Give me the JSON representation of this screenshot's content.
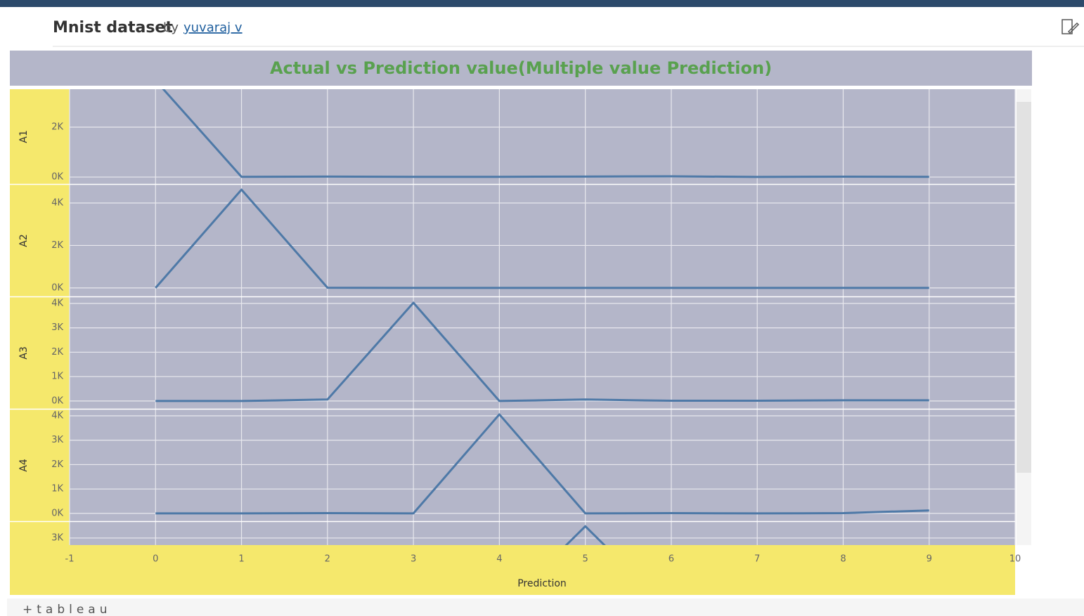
{
  "header": {
    "title": "Mnist dataset",
    "by": "by",
    "author": "yuvaraj v"
  },
  "chart_data": {
    "type": "line",
    "title": "Actual vs Prediction value(Multiple value Prediction)",
    "x_label": "Prediction",
    "x": [
      0,
      1,
      2,
      3,
      4,
      5,
      6,
      7,
      8,
      9
    ],
    "xlim": [
      -1,
      10
    ],
    "xticks": [
      -1,
      0,
      1,
      2,
      3,
      4,
      5,
      6,
      7,
      8,
      9,
      10
    ],
    "grid": true,
    "panels": [
      {
        "name": "A1",
        "color": "#4e79a7",
        "values": [
          3870,
          10,
          20,
          10,
          10,
          20,
          30,
          5,
          15,
          10
        ],
        "ylim": [
          -280,
          3520
        ],
        "yticks": [
          {
            "value": 0,
            "label": "0K"
          },
          {
            "value": 2000,
            "label": "2K"
          }
        ]
      },
      {
        "name": "A2",
        "color": "#4e79a7",
        "values": [
          0,
          4630,
          10,
          0,
          0,
          0,
          0,
          0,
          0,
          0
        ],
        "ylim": [
          -400,
          4860
        ],
        "yticks": [
          {
            "value": 0,
            "label": "0K"
          },
          {
            "value": 2000,
            "label": "2K"
          },
          {
            "value": 4000,
            "label": "4K"
          }
        ]
      },
      {
        "name": "A3",
        "color": "#4e79a7",
        "values": [
          0,
          0,
          60,
          4030,
          0,
          60,
          10,
          10,
          30,
          30
        ],
        "ylim": [
          -320,
          4260
        ],
        "yticks": [
          {
            "value": 0,
            "label": "0K"
          },
          {
            "value": 1000,
            "label": "1K"
          },
          {
            "value": 2000,
            "label": "2K"
          },
          {
            "value": 3000,
            "label": "3K"
          },
          {
            "value": 4000,
            "label": "4K"
          }
        ]
      },
      {
        "name": "A4",
        "color": "#4e79a7",
        "values": [
          0,
          0,
          10,
          0,
          4060,
          0,
          10,
          0,
          10,
          120
        ],
        "ylim": [
          -320,
          4260
        ],
        "yticks": [
          {
            "value": 0,
            "label": "0K"
          },
          {
            "value": 1000,
            "label": "1K"
          },
          {
            "value": 2000,
            "label": "2K"
          },
          {
            "value": 3000,
            "label": "3K"
          },
          {
            "value": 4000,
            "label": "4K"
          }
        ]
      },
      {
        "color": "#4e79a7",
        "values": [
          0,
          0,
          0,
          0,
          0,
          3480,
          0,
          0,
          0,
          0
        ],
        "ylim": [
          2710,
          3660
        ],
        "yticks": [
          {
            "value": 3000,
            "label": "3K"
          }
        ]
      }
    ]
  },
  "footer": {
    "logo": "+tableau"
  }
}
